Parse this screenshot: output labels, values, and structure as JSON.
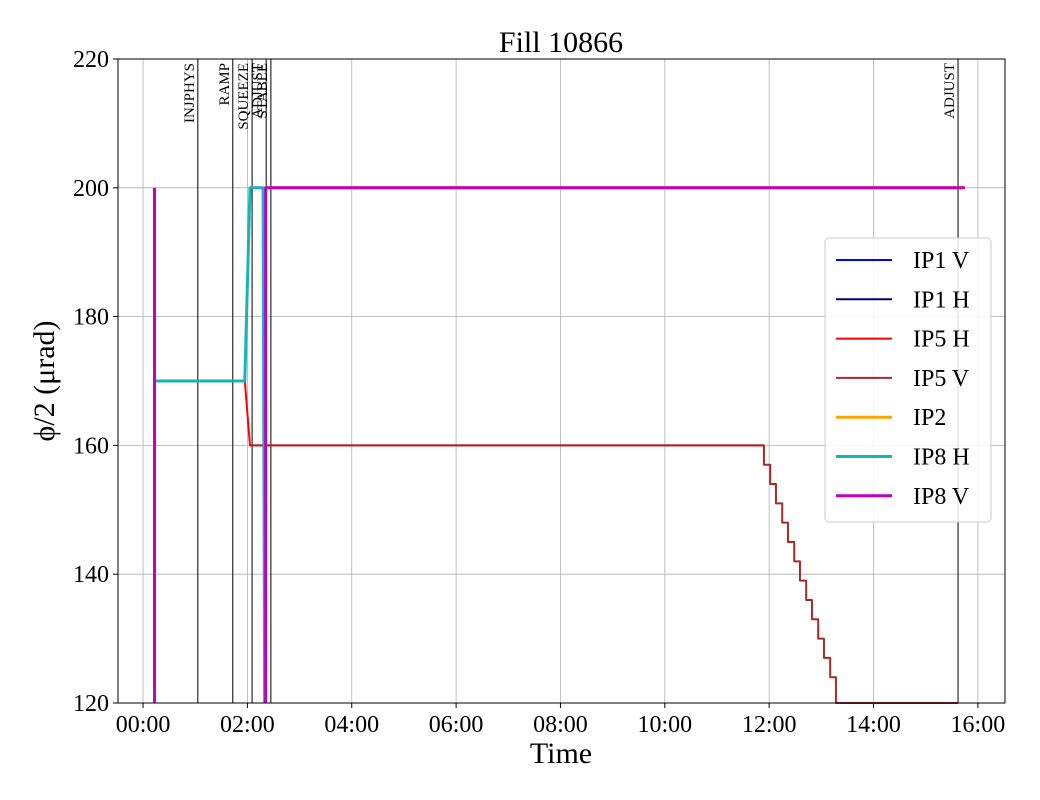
{
  "chart_data": {
    "type": "line",
    "title": "Fill 10866",
    "xlabel": "Time",
    "ylabel": "ϕ/2 (μrad)",
    "xlim": [
      -0.48,
      16.52
    ],
    "ylim": [
      120,
      220
    ],
    "xticks": [
      {
        "value": 0,
        "label": "00:00"
      },
      {
        "value": 2,
        "label": "02:00"
      },
      {
        "value": 4,
        "label": "04:00"
      },
      {
        "value": 6,
        "label": "06:00"
      },
      {
        "value": 8,
        "label": "08:00"
      },
      {
        "value": 10,
        "label": "10:00"
      },
      {
        "value": 12,
        "label": "12:00"
      },
      {
        "value": 14,
        "label": "14:00"
      },
      {
        "value": 16,
        "label": "16:00"
      }
    ],
    "yticks": [
      120,
      140,
      160,
      180,
      200,
      220
    ],
    "grid": true,
    "legend": "right",
    "phases": [
      {
        "label": "INJPHYS",
        "x": 1.05
      },
      {
        "label": "RAMP",
        "x": 1.72
      },
      {
        "label": "SQUEEZE",
        "x": 2.09
      },
      {
        "label": "ADJUST",
        "x": 2.36
      },
      {
        "label": "STABLE",
        "x": 2.45
      },
      {
        "label": "ADJUST",
        "x": 15.62
      }
    ],
    "series": [
      {
        "name": "IP1 V",
        "color": "#0000ff",
        "width": 2,
        "x": [
          2.4,
          15.75
        ],
        "values": [
          200,
          200
        ]
      },
      {
        "name": "IP1 H",
        "color": "#000080",
        "width": 2,
        "x": [
          2.4,
          15.75
        ],
        "values": [
          200,
          200
        ]
      },
      {
        "name": "IP5 H",
        "color": "#ff0000",
        "width": 2,
        "x": [
          0.22,
          1.95,
          2.05,
          11.9
        ],
        "values": [
          170,
          170,
          160,
          160
        ]
      },
      {
        "name": "IP5 V",
        "color": "#a52a2a",
        "width": 2,
        "x": [
          2.05,
          11.9,
          11.9,
          12.02,
          12.02,
          12.13,
          12.13,
          12.25,
          12.25,
          12.36,
          12.36,
          12.48,
          12.48,
          12.59,
          12.59,
          12.71,
          12.71,
          12.82,
          12.82,
          12.94,
          12.94,
          13.05,
          13.05,
          13.17,
          13.17,
          13.28,
          13.28,
          15.62
        ],
        "values": [
          160,
          160,
          157,
          157,
          154,
          154,
          151,
          151,
          148,
          148,
          145,
          145,
          142,
          142,
          139,
          139,
          136,
          136,
          133,
          133,
          130,
          130,
          127,
          127,
          124,
          124,
          120,
          120
        ]
      },
      {
        "name": "IP2",
        "color": "#ffa500",
        "width": 3,
        "x": [
          2.4,
          15.75
        ],
        "values": [
          200,
          200
        ]
      },
      {
        "name": "IP8 H",
        "color": "#17b5b5",
        "width": 3,
        "x": [
          0.22,
          1.95,
          2.05,
          2.3,
          2.33
        ],
        "values": [
          170,
          170,
          200,
          200,
          120
        ]
      },
      {
        "name": "IP8 V",
        "color": "#bf00bf",
        "width": 3,
        "x": [
          0.22,
          0.22,
          null,
          2.35,
          2.35,
          15.75
        ],
        "values": [
          120,
          200,
          null,
          120,
          200,
          200
        ]
      }
    ]
  }
}
